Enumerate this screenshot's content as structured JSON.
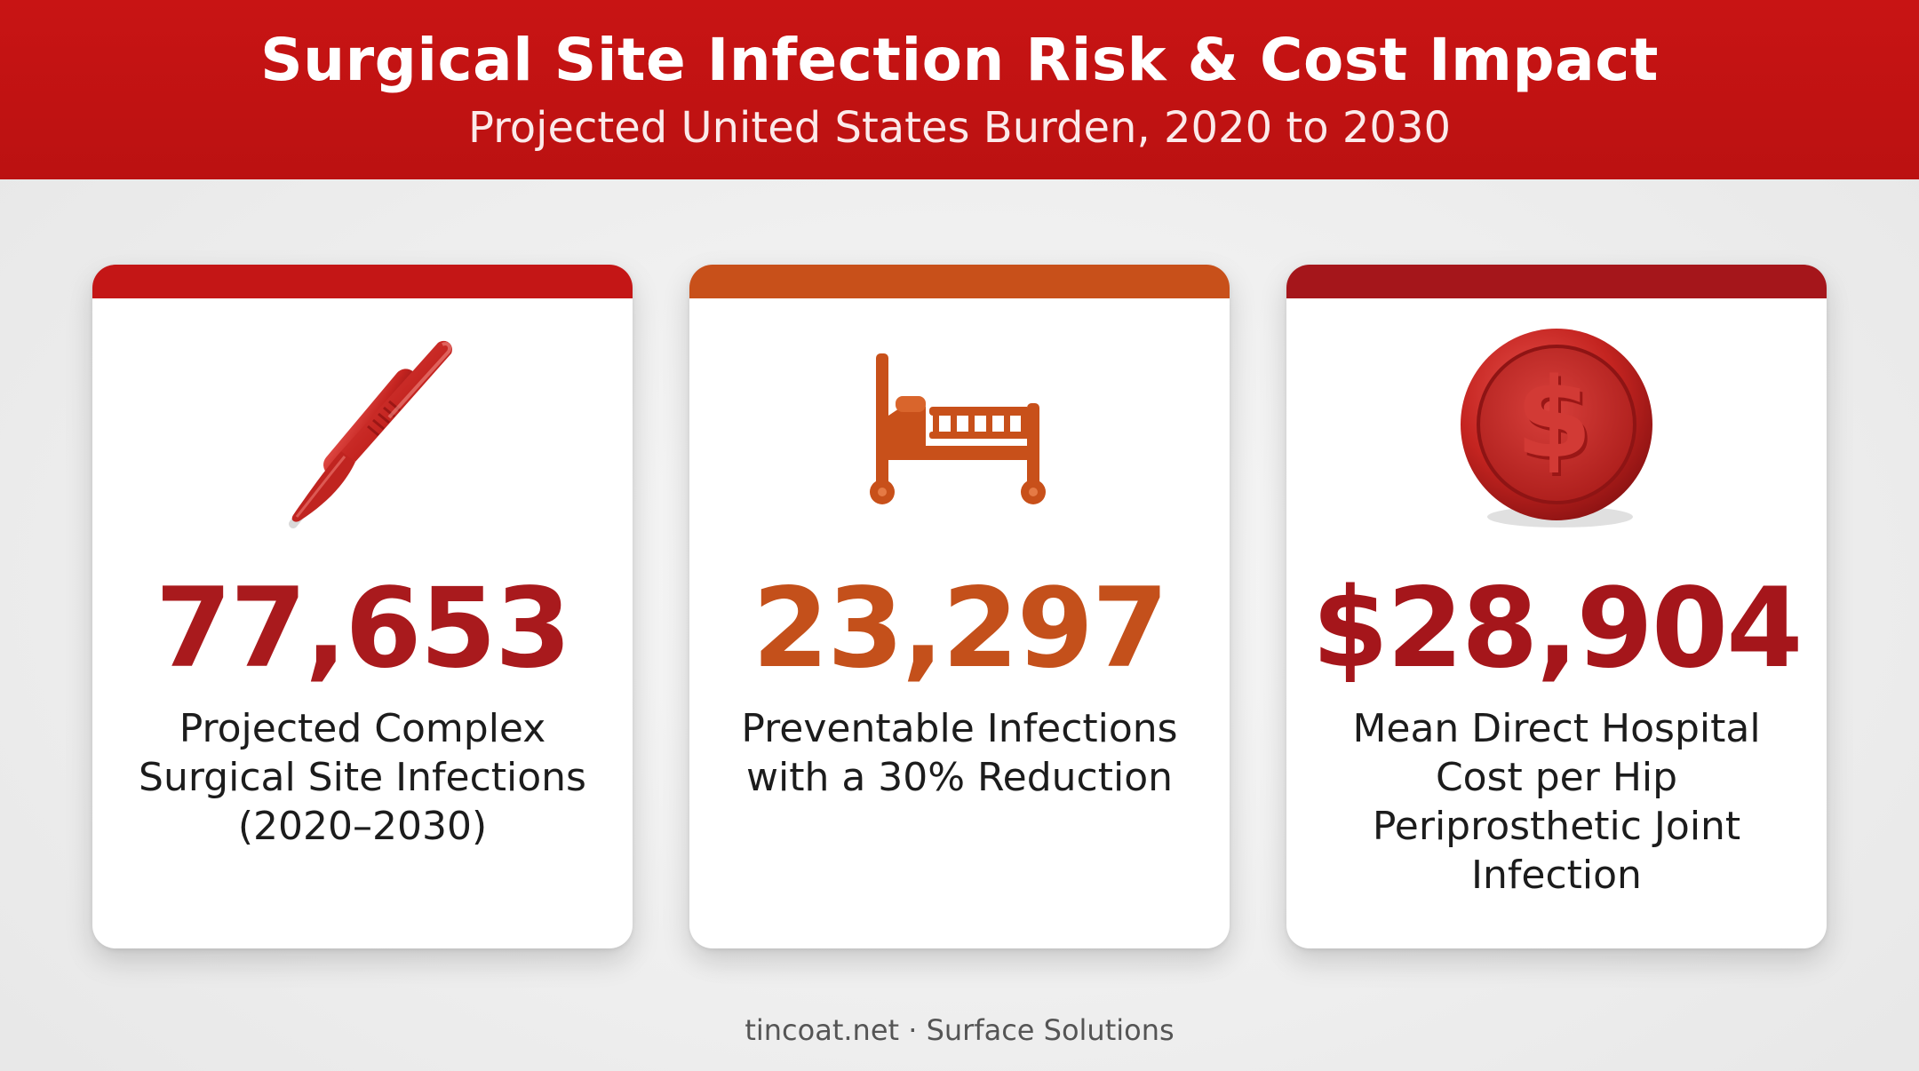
{
  "header": {
    "title": "Surgical Site Infection Risk & Cost Impact",
    "subtitle": "Projected United States Burden, 2020 to 2030"
  },
  "cards": [
    {
      "icon": "scalpel-icon",
      "accent": "#c41616",
      "value": "77,653",
      "description": "Projected Complex Surgical Site Infections (2020–2030)"
    },
    {
      "icon": "hospital-bed-icon",
      "accent": "#c8501a",
      "value": "23,297",
      "description": "Preventable Infections with a 30% Reduction"
    },
    {
      "icon": "dollar-coin-icon",
      "accent": "#a5161b",
      "value": "$28,904",
      "description": "Mean Direct Hospital Cost per Hip Periprosthetic Joint Infection"
    }
  ],
  "footer": {
    "text": "tincoat.net · Surface Solutions"
  },
  "colors": {
    "header_bg": "#c41414",
    "background": "#eeeeee",
    "text": "#1c1c1c"
  }
}
